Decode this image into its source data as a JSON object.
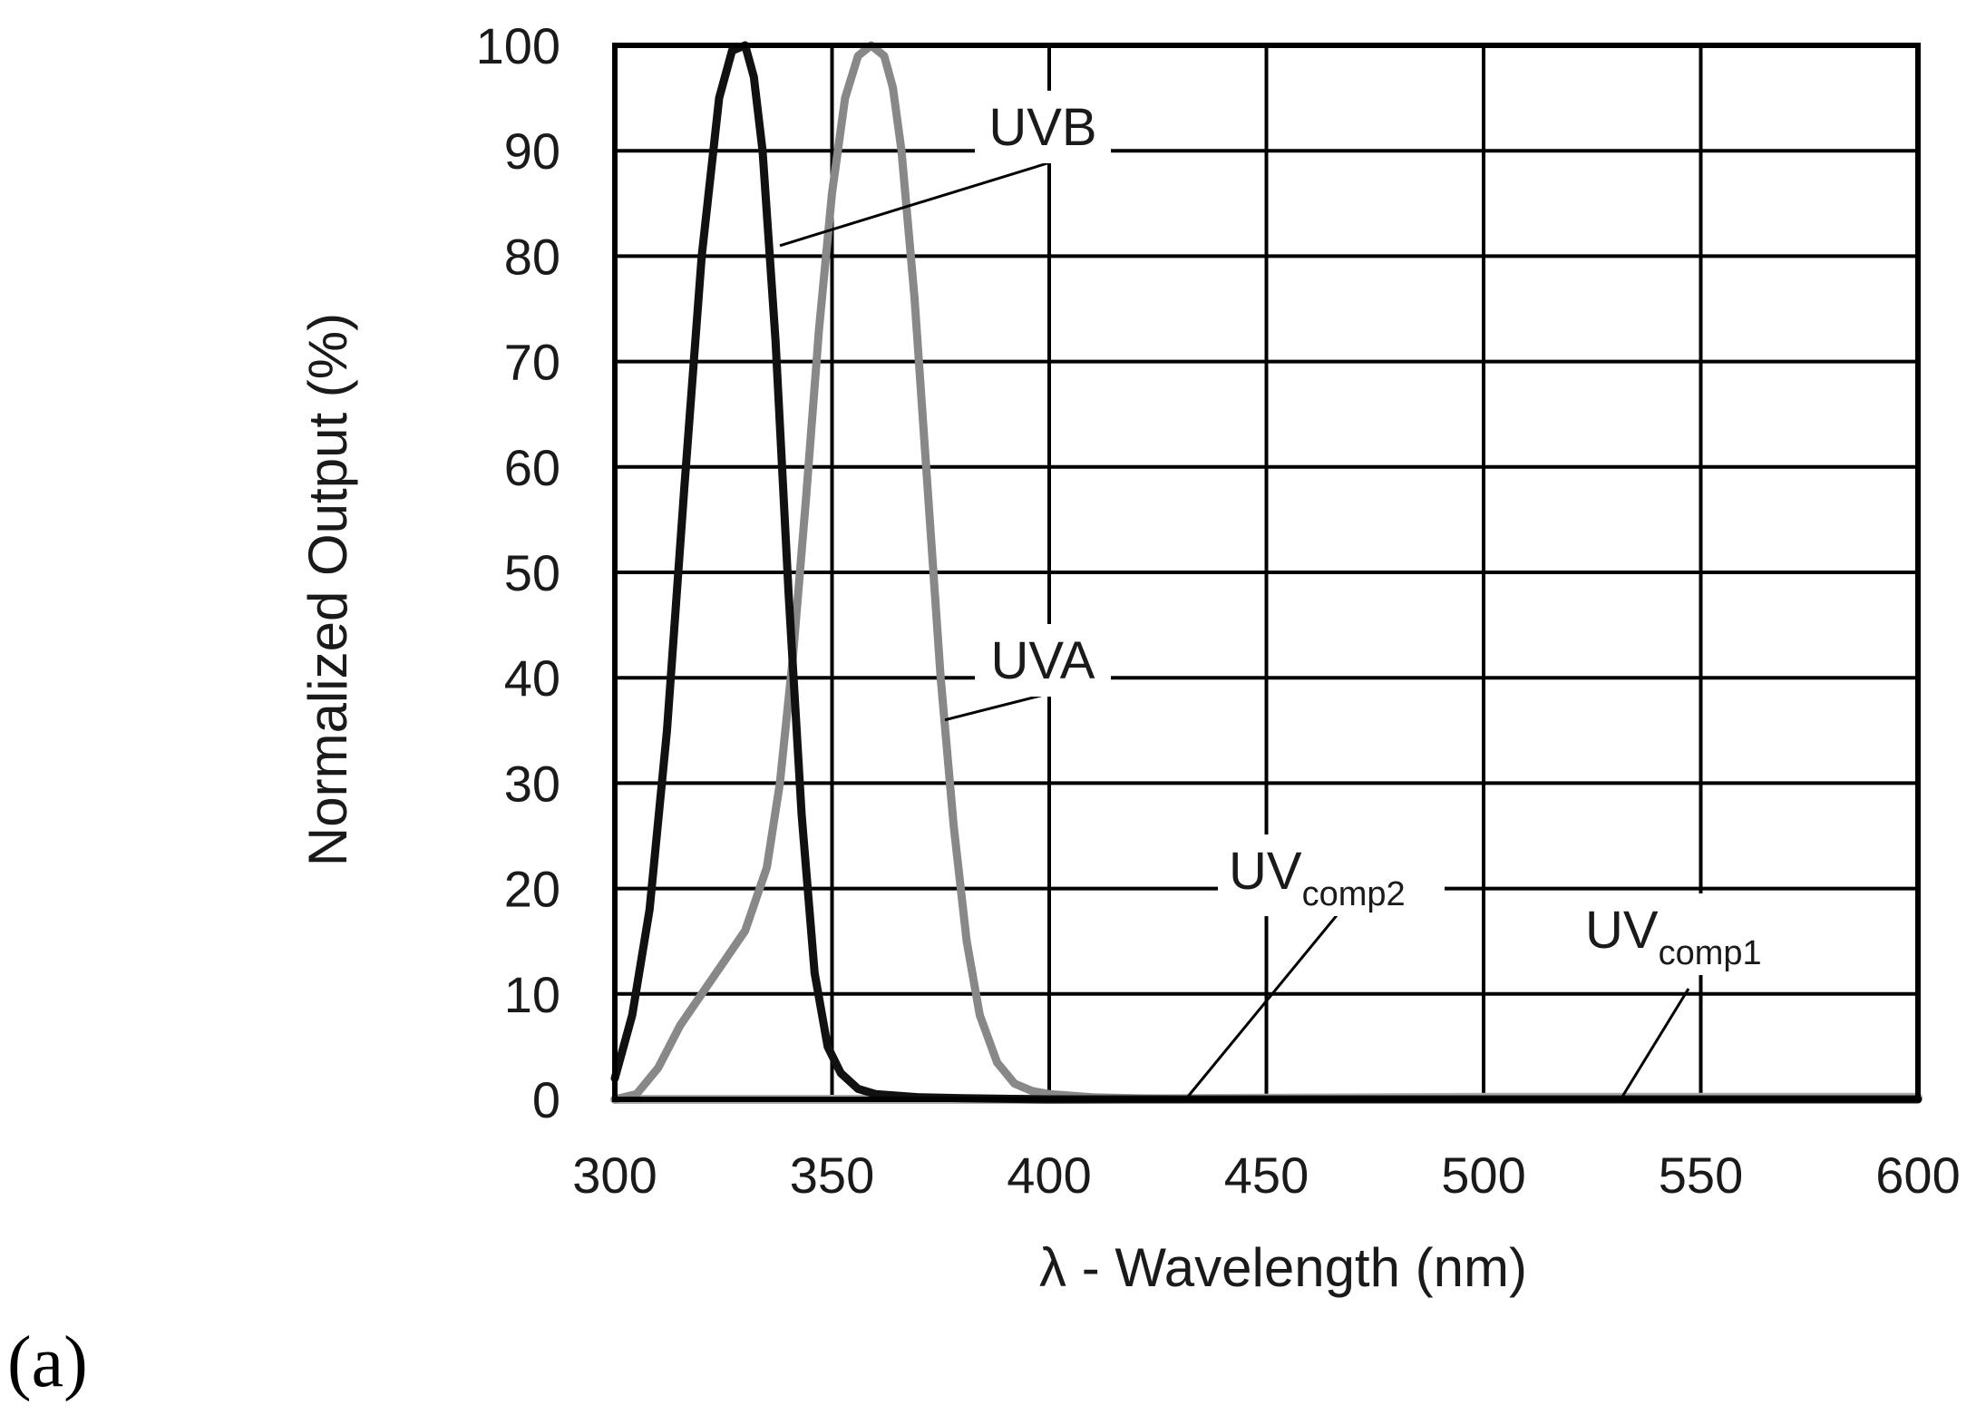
{
  "chart_data": {
    "type": "line",
    "title": "",
    "xlabel": "λ - Wavelength (nm)",
    "ylabel": "Normalized Output (%)",
    "xlim": [
      300,
      600
    ],
    "ylim": [
      0,
      100
    ],
    "xticks": [
      300,
      350,
      400,
      450,
      500,
      550,
      600
    ],
    "yticks": [
      0,
      10,
      20,
      30,
      40,
      50,
      60,
      70,
      80,
      90,
      100
    ],
    "grid": true,
    "panel_label": "(a)",
    "series": [
      {
        "name": "UVB",
        "color": "#111111",
        "x": [
          300,
          304,
          308,
          312,
          316,
          320,
          324,
          327,
          330,
          332,
          334,
          337,
          340,
          343,
          346,
          349,
          352,
          356,
          360,
          370,
          380,
          400,
          450,
          600
        ],
        "y": [
          2,
          8,
          18,
          35,
          58,
          80,
          95,
          99.5,
          100,
          97,
          90,
          72,
          48,
          27,
          12,
          5,
          2.5,
          1,
          0.5,
          0.2,
          0.1,
          0,
          0,
          0
        ]
      },
      {
        "name": "UVA",
        "color": "#888888",
        "x": [
          300,
          305,
          310,
          315,
          320,
          325,
          330,
          335,
          338,
          341,
          344,
          347,
          350,
          353,
          356,
          359,
          362,
          364,
          366,
          369,
          372,
          375,
          378,
          381,
          384,
          388,
          392,
          396,
          400,
          410,
          430,
          600
        ],
        "y": [
          0,
          0.5,
          3,
          7,
          10,
          13,
          16,
          22,
          30,
          42,
          57,
          73,
          86,
          95,
          99,
          100,
          99,
          96,
          90,
          76,
          58,
          40,
          26,
          15,
          8,
          3.5,
          1.5,
          0.8,
          0.5,
          0.2,
          0,
          0
        ]
      },
      {
        "name": "UVcomp2",
        "color": "#aaaaaa",
        "x": [
          300,
          400,
          450,
          500,
          600
        ],
        "y": [
          0,
          0,
          0.1,
          0.2,
          0.2
        ]
      },
      {
        "name": "UVcomp1",
        "color": "#bbbbbb",
        "x": [
          300,
          400,
          450,
          500,
          600
        ],
        "y": [
          0,
          0,
          0,
          0.1,
          0.1
        ]
      }
    ],
    "annotations": [
      {
        "text": "UVB",
        "sub": "",
        "target_series": "UVB",
        "point": [
          338,
          81
        ]
      },
      {
        "text": "UVA",
        "sub": "",
        "target_series": "UVA",
        "point": [
          376,
          36
        ]
      },
      {
        "text": "UV",
        "sub": "comp2",
        "target_series": "UVcomp2",
        "point": [
          432,
          0.3
        ]
      },
      {
        "text": "UV",
        "sub": "comp1",
        "target_series": "UVcomp1",
        "point": [
          532,
          0.3
        ]
      }
    ]
  }
}
